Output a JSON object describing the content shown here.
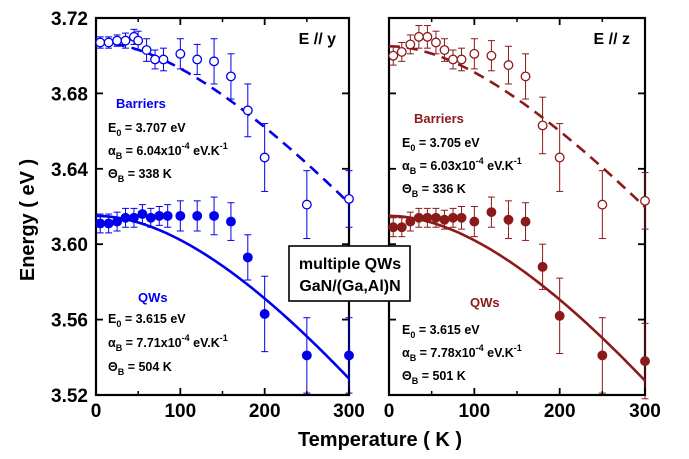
{
  "chart_data": {
    "type": "scatter",
    "ylabel": "Energy ( eV )",
    "xlabel": "Temperature ( K )",
    "xlim": [
      0,
      300
    ],
    "ylim": [
      3.52,
      3.72
    ],
    "x_ticks": [
      "0",
      "100",
      "200",
      "300"
    ],
    "y_ticks": [
      "3.52",
      "3.56",
      "3.60",
      "3.64",
      "3.68",
      "3.72"
    ],
    "grid": false,
    "center_label": [
      "multiple QWs",
      "GaN/(Ga,Al)N"
    ],
    "panels": [
      {
        "title": "E // y",
        "color": "#0000ee",
        "groups": [
          {
            "name": "Barriers",
            "marker": "open-circle",
            "params": [
              {
                "sym": "E",
                "sub": "0",
                "text": " = 3.707 eV"
              },
              {
                "sym": "α",
                "sub": "B",
                "text": " = 6.04x10",
                "sup": "-4",
                "tail": " eV.K",
                "sup2": "-1"
              },
              {
                "sym": "Θ",
                "sub": "B",
                "text": " = 338 K"
              }
            ],
            "E0": 3.707,
            "alpha": 0.000604,
            "theta": 338,
            "fit_style": "dashed",
            "points": [
              {
                "x": 5,
                "y": 3.707,
                "err": 0.003
              },
              {
                "x": 15,
                "y": 3.707,
                "err": 0.003
              },
              {
                "x": 25,
                "y": 3.708,
                "err": 0.003
              },
              {
                "x": 35,
                "y": 3.708,
                "err": 0.004
              },
              {
                "x": 45,
                "y": 3.71,
                "err": 0.004
              },
              {
                "x": 50,
                "y": 3.708,
                "err": 0.005
              },
              {
                "x": 60,
                "y": 3.703,
                "err": 0.006
              },
              {
                "x": 70,
                "y": 3.698,
                "err": 0.005
              },
              {
                "x": 80,
                "y": 3.698,
                "err": 0.006
              },
              {
                "x": 100,
                "y": 3.701,
                "err": 0.008
              },
              {
                "x": 120,
                "y": 3.698,
                "err": 0.008
              },
              {
                "x": 140,
                "y": 3.697,
                "err": 0.012
              },
              {
                "x": 160,
                "y": 3.689,
                "err": 0.012
              },
              {
                "x": 180,
                "y": 3.671,
                "err": 0.014
              },
              {
                "x": 200,
                "y": 3.646,
                "err": 0.018
              },
              {
                "x": 250,
                "y": 3.621,
                "err": 0.018
              },
              {
                "x": 300,
                "y": 3.624,
                "err": 0.015
              }
            ]
          },
          {
            "name": "QWs",
            "marker": "filled-circle",
            "params": [
              {
                "sym": "E",
                "sub": "0",
                "text": " = 3.615 eV"
              },
              {
                "sym": "α",
                "sub": "B",
                "text": " = 7.71x10",
                "sup": "-4",
                "tail": " eV.K",
                "sup2": "-1"
              },
              {
                "sym": "Θ",
                "sub": "B",
                "text": " = 504 K"
              }
            ],
            "E0": 3.615,
            "alpha": 0.000771,
            "theta": 504,
            "fit_style": "solid",
            "points": [
              {
                "x": 5,
                "y": 3.611,
                "err": 0.005
              },
              {
                "x": 15,
                "y": 3.611,
                "err": 0.005
              },
              {
                "x": 25,
                "y": 3.612,
                "err": 0.005
              },
              {
                "x": 35,
                "y": 3.614,
                "err": 0.005
              },
              {
                "x": 45,
                "y": 3.614,
                "err": 0.005
              },
              {
                "x": 55,
                "y": 3.616,
                "err": 0.005
              },
              {
                "x": 65,
                "y": 3.614,
                "err": 0.005
              },
              {
                "x": 75,
                "y": 3.615,
                "err": 0.005
              },
              {
                "x": 85,
                "y": 3.615,
                "err": 0.006
              },
              {
                "x": 100,
                "y": 3.615,
                "err": 0.008
              },
              {
                "x": 120,
                "y": 3.615,
                "err": 0.008
              },
              {
                "x": 140,
                "y": 3.615,
                "err": 0.01
              },
              {
                "x": 160,
                "y": 3.612,
                "err": 0.01
              },
              {
                "x": 180,
                "y": 3.593,
                "err": 0.012
              },
              {
                "x": 200,
                "y": 3.563,
                "err": 0.02
              },
              {
                "x": 250,
                "y": 3.541,
                "err": 0.02
              },
              {
                "x": 300,
                "y": 3.541,
                "err": 0.02
              }
            ]
          }
        ]
      },
      {
        "title": "E // z",
        "color": "#8b1a1a",
        "groups": [
          {
            "name": "Barriers",
            "marker": "open-circle",
            "params": [
              {
                "sym": "E",
                "sub": "0",
                "text": " = 3.705 eV"
              },
              {
                "sym": "α",
                "sub": "B",
                "text": " = 6.03x10",
                "sup": "-4",
                "tail": " eV.K",
                "sup2": "-1"
              },
              {
                "sym": "Θ",
                "sub": "B",
                "text": " = 336 K"
              }
            ],
            "E0": 3.705,
            "alpha": 0.000603,
            "theta": 336,
            "fit_style": "dashed",
            "points": [
              {
                "x": 5,
                "y": 3.7,
                "err": 0.005
              },
              {
                "x": 15,
                "y": 3.702,
                "err": 0.005
              },
              {
                "x": 25,
                "y": 3.706,
                "err": 0.005
              },
              {
                "x": 35,
                "y": 3.71,
                "err": 0.006
              },
              {
                "x": 45,
                "y": 3.71,
                "err": 0.006
              },
              {
                "x": 55,
                "y": 3.707,
                "err": 0.006
              },
              {
                "x": 65,
                "y": 3.703,
                "err": 0.006
              },
              {
                "x": 75,
                "y": 3.698,
                "err": 0.005
              },
              {
                "x": 85,
                "y": 3.698,
                "err": 0.006
              },
              {
                "x": 100,
                "y": 3.701,
                "err": 0.008
              },
              {
                "x": 120,
                "y": 3.7,
                "err": 0.008
              },
              {
                "x": 140,
                "y": 3.695,
                "err": 0.01
              },
              {
                "x": 160,
                "y": 3.689,
                "err": 0.012
              },
              {
                "x": 180,
                "y": 3.663,
                "err": 0.015
              },
              {
                "x": 200,
                "y": 3.646,
                "err": 0.018
              },
              {
                "x": 250,
                "y": 3.621,
                "err": 0.018
              },
              {
                "x": 300,
                "y": 3.623,
                "err": 0.015
              }
            ]
          },
          {
            "name": "QWs",
            "marker": "filled-circle",
            "params": [
              {
                "sym": "E",
                "sub": "0",
                "text": " = 3.615 eV"
              },
              {
                "sym": "α",
                "sub": "B",
                "text": " = 7.78x10",
                "sup": "-4",
                "tail": " eV.K",
                "sup2": "-1"
              },
              {
                "sym": "Θ",
                "sub": "B",
                "text": " = 501 K"
              }
            ],
            "E0": 3.615,
            "alpha": 0.000778,
            "theta": 501,
            "fit_style": "solid",
            "points": [
              {
                "x": 5,
                "y": 3.609,
                "err": 0.005
              },
              {
                "x": 15,
                "y": 3.609,
                "err": 0.005
              },
              {
                "x": 25,
                "y": 3.612,
                "err": 0.005
              },
              {
                "x": 35,
                "y": 3.614,
                "err": 0.005
              },
              {
                "x": 45,
                "y": 3.614,
                "err": 0.005
              },
              {
                "x": 55,
                "y": 3.614,
                "err": 0.005
              },
              {
                "x": 65,
                "y": 3.613,
                "err": 0.005
              },
              {
                "x": 75,
                "y": 3.614,
                "err": 0.005
              },
              {
                "x": 85,
                "y": 3.614,
                "err": 0.006
              },
              {
                "x": 100,
                "y": 3.612,
                "err": 0.008
              },
              {
                "x": 120,
                "y": 3.617,
                "err": 0.008
              },
              {
                "x": 140,
                "y": 3.613,
                "err": 0.01
              },
              {
                "x": 160,
                "y": 3.612,
                "err": 0.01
              },
              {
                "x": 180,
                "y": 3.588,
                "err": 0.012
              },
              {
                "x": 200,
                "y": 3.562,
                "err": 0.02
              },
              {
                "x": 250,
                "y": 3.541,
                "err": 0.02
              },
              {
                "x": 300,
                "y": 3.538,
                "err": 0.02
              }
            ]
          }
        ]
      }
    ]
  }
}
